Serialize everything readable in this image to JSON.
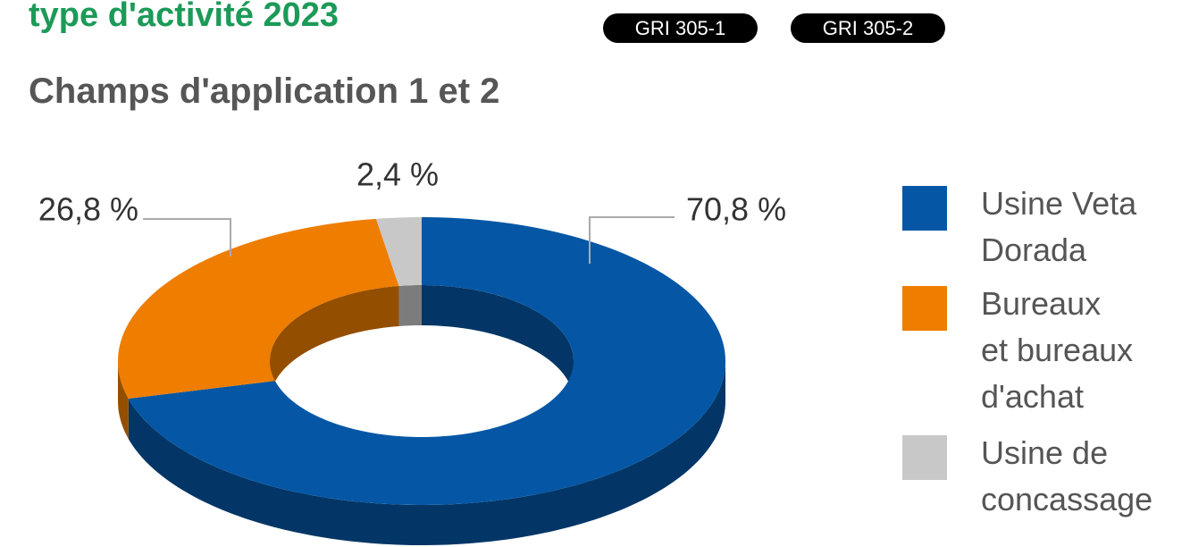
{
  "chart_data": {
    "type": "pie3d",
    "title": "type d'activité 2023",
    "badges": [
      "GRI 305-1",
      "GRI 305-2"
    ],
    "subtitle": "Champs d'application 1 et 2",
    "categories": [
      "Usine Veta\nDorada",
      "Bureaux\net bureaux\nd'achat",
      "Usine de\nconcassage"
    ],
    "values": [
      70.8,
      26.8,
      2.4
    ],
    "value_labels": [
      "70,8 %",
      "26,8 %",
      "2,4 %"
    ],
    "colors": [
      "#0557a5",
      "#ee7d00",
      "#c8c8c8"
    ],
    "legend": "right"
  }
}
